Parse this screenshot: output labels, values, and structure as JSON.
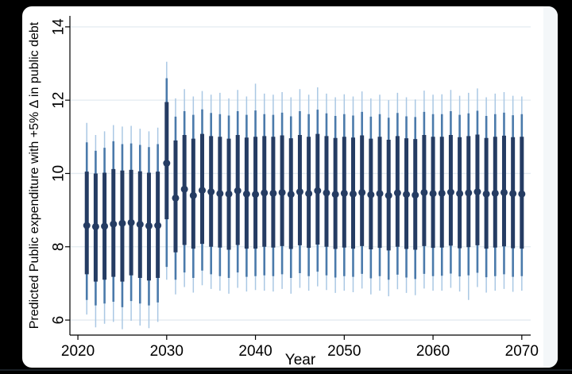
{
  "window": {
    "background": "#000000",
    "card_background": "#ffffff"
  },
  "chart_data": {
    "type": "scatter",
    "title": "",
    "xlabel": "Year",
    "ylabel": "Predicted Public expenditure with +5% Δ in public debt",
    "x_ticks": [
      "2020",
      "2030",
      "2040",
      "2050",
      "2060",
      "2070"
    ],
    "x_tick_values": [
      2020,
      2030,
      2040,
      2050,
      2060,
      2070
    ],
    "y_ticks": [
      "6",
      "8",
      "10",
      "12",
      "14"
    ],
    "y_tick_values": [
      6,
      8,
      10,
      12,
      14
    ],
    "xlim": [
      2019.1,
      2071.0
    ],
    "ylim": [
      5.59,
      14.3
    ],
    "grid": true,
    "legend": null,
    "description": "Yearly point predictions with three nested confidence intervals (thick inner bar, medium band, thin outer whisker)",
    "colors": {
      "point": "#253c63",
      "inner": "#253c63",
      "mid": "#4a7aab",
      "outer": "#aac8e4",
      "grid": "#e3ebf1",
      "axis": "#000000",
      "text": "#000000"
    },
    "series": [
      {
        "year": 2021,
        "dot": 8.58,
        "inner": [
          7.25,
          10.05
        ],
        "mid": [
          6.55,
          10.85
        ],
        "outer": [
          6.15,
          11.38
        ]
      },
      {
        "year": 2022,
        "dot": 8.55,
        "inner": [
          7.05,
          10.0
        ],
        "mid": [
          6.4,
          10.62
        ],
        "outer": [
          5.8,
          11.05
        ]
      },
      {
        "year": 2023,
        "dot": 8.56,
        "inner": [
          7.1,
          10.02
        ],
        "mid": [
          6.45,
          10.7
        ],
        "outer": [
          5.9,
          11.15
        ]
      },
      {
        "year": 2024,
        "dot": 8.62,
        "inner": [
          7.18,
          10.12
        ],
        "mid": [
          6.5,
          10.88
        ],
        "outer": [
          5.95,
          11.32
        ]
      },
      {
        "year": 2025,
        "dot": 8.64,
        "inner": [
          7.05,
          10.08
        ],
        "mid": [
          6.35,
          10.8
        ],
        "outer": [
          5.75,
          11.28
        ]
      },
      {
        "year": 2026,
        "dot": 8.66,
        "inner": [
          7.22,
          10.1
        ],
        "mid": [
          6.52,
          10.82
        ],
        "outer": [
          5.98,
          11.3
        ]
      },
      {
        "year": 2027,
        "dot": 8.61,
        "inner": [
          7.15,
          10.06
        ],
        "mid": [
          6.45,
          10.78
        ],
        "outer": [
          5.85,
          11.22
        ]
      },
      {
        "year": 2028,
        "dot": 8.57,
        "inner": [
          7.08,
          10.02
        ],
        "mid": [
          6.4,
          10.72
        ],
        "outer": [
          5.78,
          11.15
        ]
      },
      {
        "year": 2029,
        "dot": 8.58,
        "inner": [
          7.15,
          10.05
        ],
        "mid": [
          6.48,
          10.8
        ],
        "outer": [
          5.95,
          11.25
        ]
      },
      {
        "year": 2030,
        "dot": 10.28,
        "inner": [
          8.75,
          11.95
        ],
        "mid": [
          7.45,
          12.6
        ],
        "outer": [
          7.1,
          13.05
        ]
      },
      {
        "year": 2031,
        "dot": 9.33,
        "inner": [
          7.85,
          10.9
        ],
        "mid": [
          7.1,
          11.55
        ],
        "outer": [
          6.7,
          12.05
        ]
      },
      {
        "year": 2032,
        "dot": 9.57,
        "inner": [
          8.05,
          11.05
        ],
        "mid": [
          7.3,
          11.7
        ],
        "outer": [
          6.9,
          12.3
        ]
      },
      {
        "year": 2033,
        "dot": 9.4,
        "inner": [
          7.95,
          10.95
        ],
        "mid": [
          7.15,
          11.6
        ],
        "outer": [
          6.75,
          12.1
        ]
      },
      {
        "year": 2034,
        "dot": 9.54,
        "inner": [
          8.08,
          11.08
        ],
        "mid": [
          7.35,
          11.75
        ],
        "outer": [
          6.95,
          12.25
        ]
      },
      {
        "year": 2035,
        "dot": 9.5,
        "inner": [
          8.0,
          11.02
        ],
        "mid": [
          7.25,
          11.65
        ],
        "outer": [
          6.85,
          12.15
        ]
      },
      {
        "year": 2036,
        "dot": 9.45,
        "inner": [
          7.98,
          11.0
        ],
        "mid": [
          7.2,
          11.62
        ],
        "outer": [
          6.8,
          12.2
        ]
      },
      {
        "year": 2037,
        "dot": 9.44,
        "inner": [
          7.92,
          10.95
        ],
        "mid": [
          7.15,
          11.58
        ],
        "outer": [
          6.72,
          12.05
        ]
      },
      {
        "year": 2038,
        "dot": 9.53,
        "inner": [
          8.05,
          11.05
        ],
        "mid": [
          7.3,
          11.7
        ],
        "outer": [
          6.88,
          12.28
        ]
      },
      {
        "year": 2039,
        "dot": 9.44,
        "inner": [
          7.95,
          10.98
        ],
        "mid": [
          7.18,
          11.6
        ],
        "outer": [
          6.78,
          12.1
        ]
      },
      {
        "year": 2040,
        "dot": 9.43,
        "inner": [
          7.95,
          11.0
        ],
        "mid": [
          7.2,
          11.72
        ],
        "outer": [
          6.82,
          12.45
        ]
      },
      {
        "year": 2041,
        "dot": 9.47,
        "inner": [
          8.0,
          11.02
        ],
        "mid": [
          7.22,
          11.62
        ],
        "outer": [
          6.8,
          12.18
        ]
      },
      {
        "year": 2042,
        "dot": 9.46,
        "inner": [
          7.98,
          11.0
        ],
        "mid": [
          7.2,
          11.6
        ],
        "outer": [
          6.78,
          12.15
        ]
      },
      {
        "year": 2043,
        "dot": 9.48,
        "inner": [
          8.02,
          11.04
        ],
        "mid": [
          7.25,
          11.66
        ],
        "outer": [
          6.85,
          12.22
        ]
      },
      {
        "year": 2044,
        "dot": 9.43,
        "inner": [
          7.94,
          10.96
        ],
        "mid": [
          7.15,
          11.56
        ],
        "outer": [
          6.72,
          12.08
        ]
      },
      {
        "year": 2045,
        "dot": 9.5,
        "inner": [
          8.04,
          11.05
        ],
        "mid": [
          7.28,
          11.7
        ],
        "outer": [
          6.88,
          12.3
        ]
      },
      {
        "year": 2046,
        "dot": 9.45,
        "inner": [
          7.97,
          11.0
        ],
        "mid": [
          7.2,
          11.62
        ],
        "outer": [
          6.8,
          12.15
        ]
      },
      {
        "year": 2047,
        "dot": 9.53,
        "inner": [
          8.06,
          11.08
        ],
        "mid": [
          7.32,
          11.74
        ],
        "outer": [
          6.92,
          12.35
        ]
      },
      {
        "year": 2048,
        "dot": 9.47,
        "inner": [
          8.0,
          11.02
        ],
        "mid": [
          7.22,
          11.64
        ],
        "outer": [
          6.82,
          12.18
        ]
      },
      {
        "year": 2049,
        "dot": 9.43,
        "inner": [
          7.94,
          10.97
        ],
        "mid": [
          7.16,
          11.57
        ],
        "outer": [
          6.74,
          12.08
        ]
      },
      {
        "year": 2050,
        "dot": 9.46,
        "inner": [
          7.98,
          11.0
        ],
        "mid": [
          7.2,
          11.62
        ],
        "outer": [
          6.8,
          12.16
        ]
      },
      {
        "year": 2051,
        "dot": 9.44,
        "inner": [
          7.95,
          10.98
        ],
        "mid": [
          7.18,
          11.58
        ],
        "outer": [
          6.76,
          12.1
        ]
      },
      {
        "year": 2052,
        "dot": 9.48,
        "inner": [
          8.02,
          11.04
        ],
        "mid": [
          7.26,
          11.68
        ],
        "outer": [
          6.86,
          12.24
        ]
      },
      {
        "year": 2053,
        "dot": 9.42,
        "inner": [
          7.93,
          10.95
        ],
        "mid": [
          7.14,
          11.55
        ],
        "outer": [
          6.7,
          12.05
        ]
      },
      {
        "year": 2054,
        "dot": 9.45,
        "inner": [
          7.97,
          11.0
        ],
        "mid": [
          7.2,
          11.62
        ],
        "outer": [
          6.8,
          12.15
        ]
      },
      {
        "year": 2055,
        "dot": 9.4,
        "inner": [
          7.9,
          10.92
        ],
        "mid": [
          7.1,
          11.52
        ],
        "outer": [
          6.65,
          12.0
        ]
      },
      {
        "year": 2056,
        "dot": 9.47,
        "inner": [
          8.0,
          11.02
        ],
        "mid": [
          7.24,
          11.65
        ],
        "outer": [
          6.84,
          12.2
        ]
      },
      {
        "year": 2057,
        "dot": 9.43,
        "inner": [
          7.94,
          10.96
        ],
        "mid": [
          7.16,
          11.56
        ],
        "outer": [
          6.74,
          12.08
        ]
      },
      {
        "year": 2058,
        "dot": 9.41,
        "inner": [
          7.92,
          10.94
        ],
        "mid": [
          7.12,
          11.54
        ],
        "outer": [
          6.68,
          12.02
        ]
      },
      {
        "year": 2059,
        "dot": 9.48,
        "inner": [
          8.02,
          11.05
        ],
        "mid": [
          7.26,
          11.68
        ],
        "outer": [
          6.86,
          12.26
        ]
      },
      {
        "year": 2060,
        "dot": 9.45,
        "inner": [
          7.97,
          11.0
        ],
        "mid": [
          7.2,
          11.62
        ],
        "outer": [
          6.8,
          12.15
        ]
      },
      {
        "year": 2061,
        "dot": 9.46,
        "inner": [
          7.98,
          11.0
        ],
        "mid": [
          7.21,
          11.62
        ],
        "outer": [
          6.8,
          12.16
        ]
      },
      {
        "year": 2062,
        "dot": 9.49,
        "inner": [
          8.03,
          11.05
        ],
        "mid": [
          7.27,
          11.7
        ],
        "outer": [
          6.88,
          12.28
        ]
      },
      {
        "year": 2063,
        "dot": 9.45,
        "inner": [
          7.96,
          10.99
        ],
        "mid": [
          7.19,
          11.6
        ],
        "outer": [
          6.78,
          12.12
        ]
      },
      {
        "year": 2064,
        "dot": 9.47,
        "inner": [
          7.99,
          11.02
        ],
        "mid": [
          7.22,
          11.64
        ],
        "outer": [
          6.55,
          12.2
        ]
      },
      {
        "year": 2065,
        "dot": 9.5,
        "inner": [
          8.04,
          11.06
        ],
        "mid": [
          7.29,
          11.71
        ],
        "outer": [
          6.9,
          12.32
        ]
      },
      {
        "year": 2066,
        "dot": 9.44,
        "inner": [
          7.95,
          10.97
        ],
        "mid": [
          7.17,
          11.57
        ],
        "outer": [
          6.75,
          12.08
        ]
      },
      {
        "year": 2067,
        "dot": 9.46,
        "inner": [
          7.98,
          11.0
        ],
        "mid": [
          7.2,
          11.62
        ],
        "outer": [
          6.8,
          12.18
        ]
      },
      {
        "year": 2068,
        "dot": 9.48,
        "inner": [
          8.01,
          11.03
        ],
        "mid": [
          7.25,
          11.66
        ],
        "outer": [
          6.85,
          12.22
        ]
      },
      {
        "year": 2069,
        "dot": 9.45,
        "inner": [
          7.96,
          10.99
        ],
        "mid": [
          7.18,
          11.59
        ],
        "outer": [
          6.77,
          12.12
        ]
      },
      {
        "year": 2070,
        "dot": 9.44,
        "inner": [
          7.95,
          11.0
        ],
        "mid": [
          7.2,
          11.62
        ],
        "outer": [
          6.8,
          12.1
        ]
      }
    ]
  }
}
